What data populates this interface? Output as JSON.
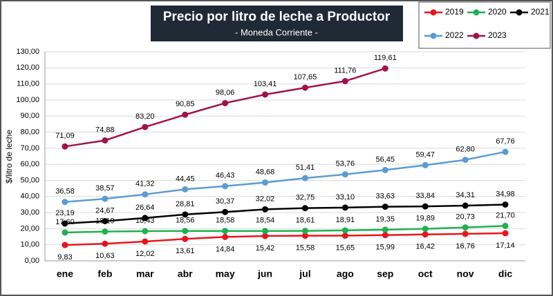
{
  "chart_data": {
    "type": "line",
    "title": "Precio por litro de leche a Productor",
    "subtitle": "- Moneda Corriente -",
    "y_label": "$/litro de leche",
    "categories": [
      "ene",
      "feb",
      "mar",
      "abr",
      "may",
      "jun",
      "jul",
      "ago",
      "sep",
      "oct",
      "nov",
      "dic"
    ],
    "series": [
      {
        "name": "2019",
        "color": "#e8141c",
        "values": [
          9.83,
          10.63,
          12.02,
          13.61,
          14.84,
          15.42,
          15.58,
          15.65,
          15.99,
          16.42,
          16.76,
          17.14
        ],
        "value_labels": [
          "9,83",
          "10,63",
          "12,02",
          "13,61",
          "14,84",
          "15,42",
          "15,58",
          "15,65",
          "15,99",
          "16,42",
          "16,76",
          "17,14"
        ]
      },
      {
        "name": "2020",
        "color": "#1fb04f",
        "values": [
          17.6,
          18.19,
          18.43,
          18.56,
          18.58,
          18.54,
          18.61,
          18.91,
          19.35,
          19.89,
          20.73,
          21.7
        ],
        "value_labels": [
          "17,60",
          "18,19",
          "18,43",
          "18,56",
          "18,58",
          "18,54",
          "18,61",
          "18,91",
          "19,35",
          "19,89",
          "20,73",
          "21,70"
        ]
      },
      {
        "name": "2021",
        "color": "#000000",
        "values": [
          23.19,
          24.67,
          26.64,
          28.81,
          30.37,
          32.02,
          32.75,
          33.1,
          33.63,
          33.84,
          34.31,
          34.98
        ],
        "value_labels": [
          "23,19",
          "24,67",
          "26,64",
          "28,81",
          "30,37",
          "32,02",
          "32,75",
          "33,10",
          "33,63",
          "33,84",
          "34,31",
          "34,98"
        ]
      },
      {
        "name": "2022",
        "color": "#5b9bd5",
        "values": [
          36.58,
          38.57,
          41.32,
          44.45,
          46.43,
          48.68,
          51.41,
          53.76,
          56.45,
          59.47,
          62.8,
          67.76
        ],
        "value_labels": [
          "36,58",
          "38,57",
          "41,32",
          "44,45",
          "46,43",
          "48,68",
          "51,41",
          "53,76",
          "56,45",
          "59,47",
          "62,80",
          "67,76"
        ]
      },
      {
        "name": "2023",
        "color": "#a0134a",
        "values": [
          71.09,
          74.88,
          83.2,
          90.85,
          98.06,
          103.41,
          107.65,
          111.76,
          119.61,
          null,
          null,
          null
        ],
        "value_labels": [
          "71,09",
          "74,88",
          "83,20",
          "90,85",
          "98,06",
          "103,41",
          "107,65",
          "111,76",
          "119,61",
          null,
          null,
          null
        ]
      }
    ],
    "ylim": [
      0,
      130
    ],
    "yticks": [
      {
        "value": 0,
        "label": "0,00"
      },
      {
        "value": 10,
        "label": "10,00"
      },
      {
        "value": 20,
        "label": "20,00"
      },
      {
        "value": 30,
        "label": "30,00"
      },
      {
        "value": 40,
        "label": "40,00"
      },
      {
        "value": 50,
        "label": "50,00"
      },
      {
        "value": 60,
        "label": "60,00"
      },
      {
        "value": 70,
        "label": "70,00"
      },
      {
        "value": 80,
        "label": "80,00"
      },
      {
        "value": 90,
        "label": "90,00"
      },
      {
        "value": 100,
        "label": "100,00"
      },
      {
        "value": 110,
        "label": "110,00"
      },
      {
        "value": 120,
        "label": "120,00"
      },
      {
        "value": 130,
        "label": "130,00"
      }
    ],
    "grid": true,
    "legend": "top-right"
  }
}
